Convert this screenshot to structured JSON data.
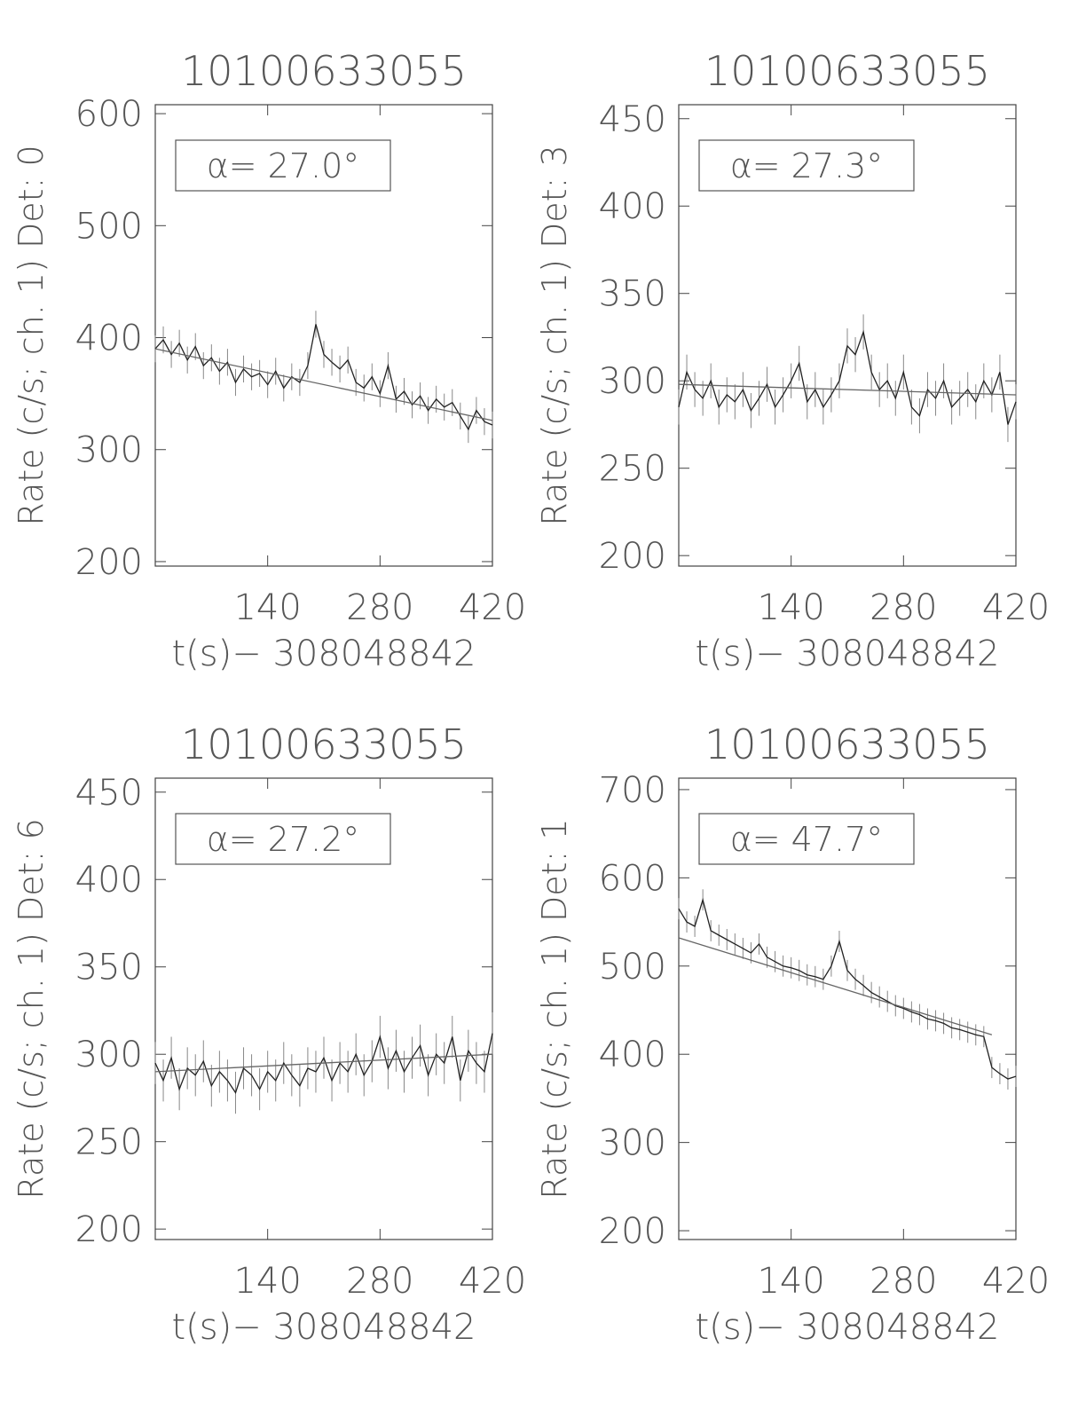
{
  "chart_data": [
    {
      "type": "line",
      "title": "10100633055",
      "ylabel": "Rate (c/s; ch. 1) Det: 0",
      "xlabel": "t(s)− 308048842",
      "annotation": "α= 27.0°",
      "xlim": [
        0,
        420
      ],
      "xticks": [
        140,
        280,
        420
      ],
      "ylim": [
        196,
        608
      ],
      "yticks": [
        200,
        300,
        400,
        500,
        600
      ],
      "series": [
        {
          "x": [
            0,
            10,
            20,
            30,
            40,
            50,
            60,
            70,
            80,
            90,
            100,
            110,
            120,
            130,
            140,
            150,
            160,
            170,
            180,
            190,
            200,
            210,
            220,
            230,
            240,
            250,
            260,
            270,
            280,
            290,
            300,
            310,
            320,
            330,
            340,
            350,
            360,
            370,
            380,
            390,
            400,
            410,
            420
          ],
          "values": [
            390,
            398,
            385,
            395,
            380,
            392,
            375,
            382,
            370,
            378,
            360,
            372,
            365,
            368,
            358,
            370,
            355,
            365,
            360,
            375,
            412,
            385,
            378,
            372,
            380,
            360,
            355,
            365,
            350,
            375,
            345,
            352,
            340,
            348,
            335,
            345,
            338,
            342,
            330,
            318,
            335,
            325,
            322
          ],
          "error": 12,
          "color": "#222"
        },
        {
          "x": [
            0,
            420
          ],
          "values": [
            390,
            326
          ],
          "color": "#666"
        }
      ]
    },
    {
      "type": "line",
      "title": "10100633055",
      "ylabel": "Rate (c/s; ch. 1) Det: 3",
      "xlabel": "t(s)− 308048842",
      "annotation": "α= 27.3°",
      "xlim": [
        0,
        420
      ],
      "xticks": [
        140,
        280,
        420
      ],
      "ylim": [
        194,
        458
      ],
      "yticks": [
        200,
        250,
        300,
        350,
        400,
        450
      ],
      "series": [
        {
          "x": [
            0,
            10,
            20,
            30,
            40,
            50,
            60,
            70,
            80,
            90,
            100,
            110,
            120,
            130,
            140,
            150,
            160,
            170,
            180,
            190,
            200,
            210,
            220,
            230,
            240,
            250,
            260,
            270,
            280,
            290,
            300,
            310,
            320,
            330,
            340,
            350,
            360,
            370,
            380,
            390,
            400,
            410,
            420
          ],
          "values": [
            285,
            305,
            295,
            290,
            300,
            285,
            292,
            288,
            295,
            283,
            290,
            298,
            285,
            292,
            300,
            310,
            288,
            295,
            285,
            292,
            300,
            320,
            315,
            328,
            305,
            295,
            300,
            290,
            305,
            285,
            280,
            295,
            290,
            300,
            285,
            290,
            295,
            288,
            300,
            292,
            305,
            275,
            288
          ],
          "error": 10,
          "color": "#222"
        },
        {
          "x": [
            0,
            420
          ],
          "values": [
            298,
            292
          ],
          "color": "#666"
        }
      ]
    },
    {
      "type": "line",
      "title": "10100633055",
      "ylabel": "Rate (c/s; ch. 1) Det: 6",
      "xlabel": "t(s)− 308048842",
      "annotation": "α= 27.2°",
      "xlim": [
        0,
        420
      ],
      "xticks": [
        140,
        280,
        420
      ],
      "ylim": [
        194,
        458
      ],
      "yticks": [
        200,
        250,
        300,
        350,
        400,
        450
      ],
      "series": [
        {
          "x": [
            0,
            10,
            20,
            30,
            40,
            50,
            60,
            70,
            80,
            90,
            100,
            110,
            120,
            130,
            140,
            150,
            160,
            170,
            180,
            190,
            200,
            210,
            220,
            230,
            240,
            250,
            260,
            270,
            280,
            290,
            300,
            310,
            320,
            330,
            340,
            350,
            360,
            370,
            380,
            390,
            400,
            410,
            420
          ],
          "values": [
            295,
            285,
            298,
            280,
            292,
            288,
            296,
            282,
            290,
            285,
            278,
            292,
            288,
            280,
            290,
            285,
            295,
            288,
            282,
            292,
            290,
            298,
            285,
            295,
            290,
            300,
            288,
            296,
            310,
            292,
            302,
            290,
            298,
            305,
            288,
            300,
            295,
            310,
            285,
            302,
            295,
            290,
            312
          ],
          "error": 12,
          "color": "#222"
        },
        {
          "x": [
            0,
            420
          ],
          "values": [
            290,
            300
          ],
          "color": "#666"
        }
      ]
    },
    {
      "type": "line",
      "title": "10100633055",
      "ylabel": "Rate (c/s; ch. 1) Det: 1",
      "xlabel": "t(s)− 308048842",
      "annotation": "α= 47.7°",
      "xlim": [
        0,
        420
      ],
      "xticks": [
        140,
        280,
        420
      ],
      "ylim": [
        190,
        713
      ],
      "yticks": [
        200,
        300,
        400,
        500,
        600,
        700
      ],
      "series": [
        {
          "x": [
            0,
            10,
            20,
            30,
            40,
            50,
            60,
            70,
            80,
            90,
            100,
            110,
            120,
            130,
            140,
            150,
            160,
            170,
            180,
            190,
            200,
            210,
            220,
            230,
            240,
            250,
            260,
            270,
            280,
            290,
            300,
            310,
            320,
            330,
            340,
            350,
            360,
            370,
            380,
            390,
            400,
            410,
            420
          ],
          "values": [
            565,
            550,
            545,
            575,
            540,
            535,
            530,
            525,
            520,
            515,
            525,
            510,
            505,
            500,
            498,
            495,
            490,
            488,
            485,
            500,
            528,
            495,
            485,
            478,
            470,
            465,
            460,
            455,
            452,
            448,
            445,
            440,
            438,
            435,
            430,
            428,
            425,
            422,
            420,
            385,
            378,
            372,
            375
          ],
          "error": 12,
          "color": "#222"
        },
        {
          "x": [
            0,
            390
          ],
          "values": [
            532,
            422
          ],
          "color": "#666"
        }
      ]
    }
  ]
}
